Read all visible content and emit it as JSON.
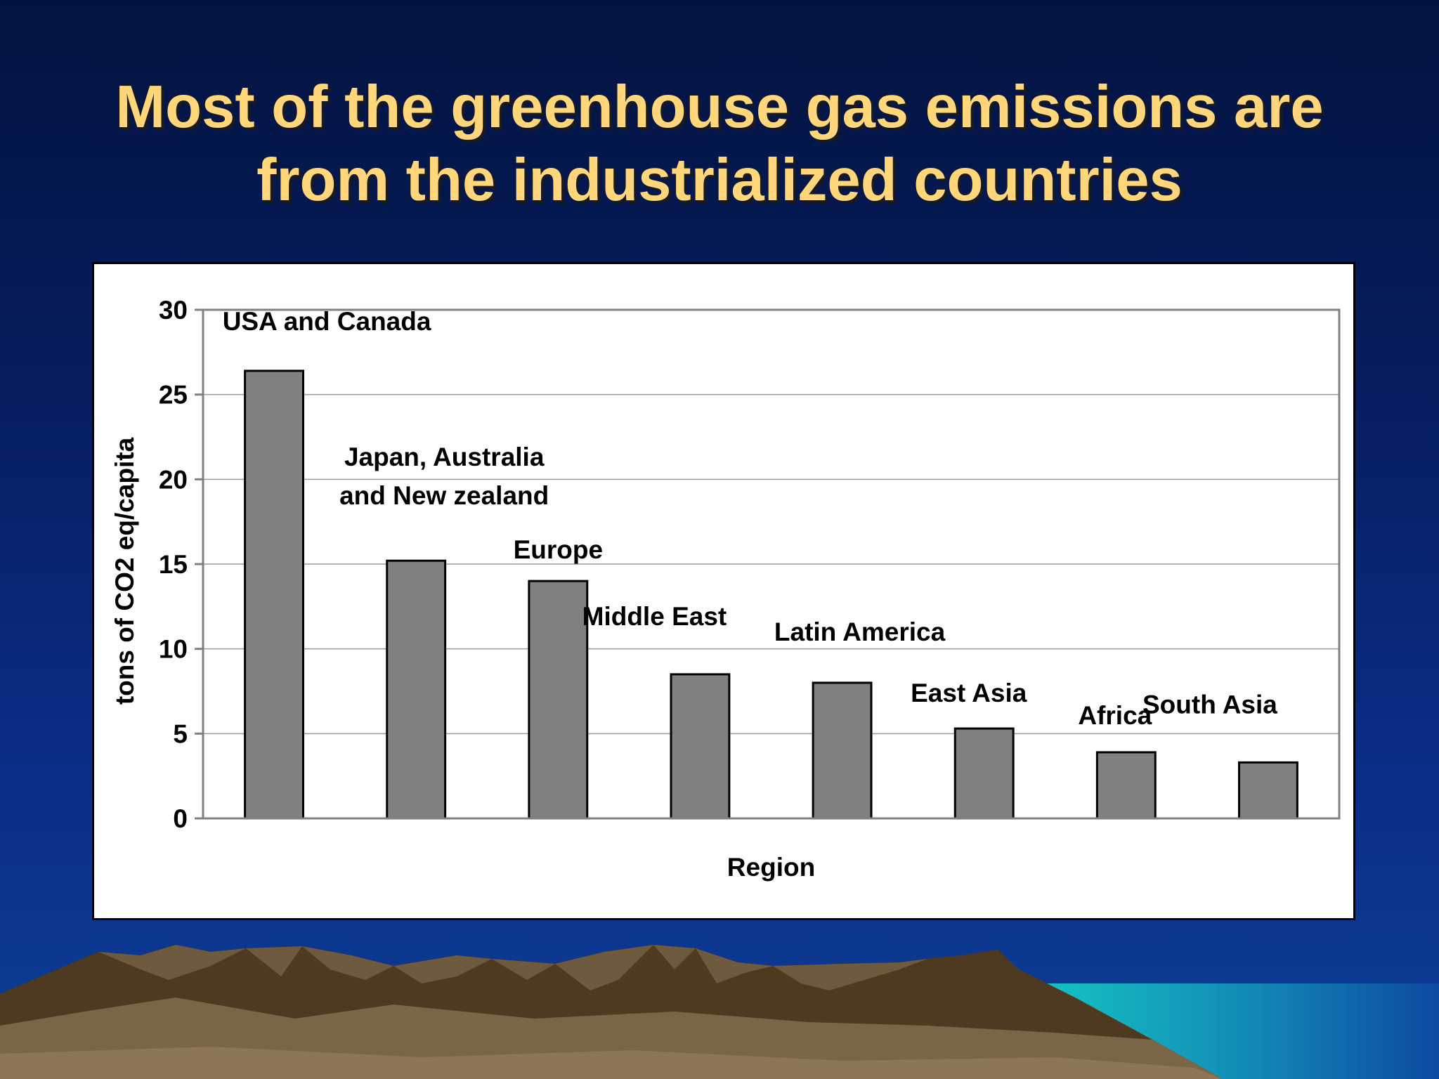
{
  "slide": {
    "title_line_1": "Most of the greenhouse gas emissions are",
    "title_line_2": "from the industrialized countries"
  },
  "colors": {
    "title": "#ffd77a",
    "bar_fill": "#808080",
    "background_top": "#03133f",
    "background_bottom": "#0a3a8e"
  },
  "chart_data": {
    "type": "bar",
    "categories": [
      "USA and Canada",
      "Japan, Australia and New zealand",
      "Europe",
      "Middle East",
      "Latin America",
      "East Asia",
      "Africa",
      "South Asia"
    ],
    "category_label_lines": [
      [
        "USA and Canada"
      ],
      [
        "Japan, Australia",
        "and New zealand"
      ],
      [
        "Europe"
      ],
      [
        "Middle East"
      ],
      [
        "Latin America"
      ],
      [
        "East Asia"
      ],
      [
        "Africa"
      ],
      [
        "South Asia"
      ]
    ],
    "values": [
      26.4,
      15.2,
      14.0,
      8.5,
      8.0,
      5.3,
      3.9,
      3.3
    ],
    "xlabel": "Region",
    "ylabel": "tons of CO2 eq/capita",
    "ylim": [
      0,
      30
    ],
    "yticks": [
      0,
      5,
      10,
      15,
      20,
      25,
      30
    ],
    "grid": true,
    "legend": "none"
  }
}
